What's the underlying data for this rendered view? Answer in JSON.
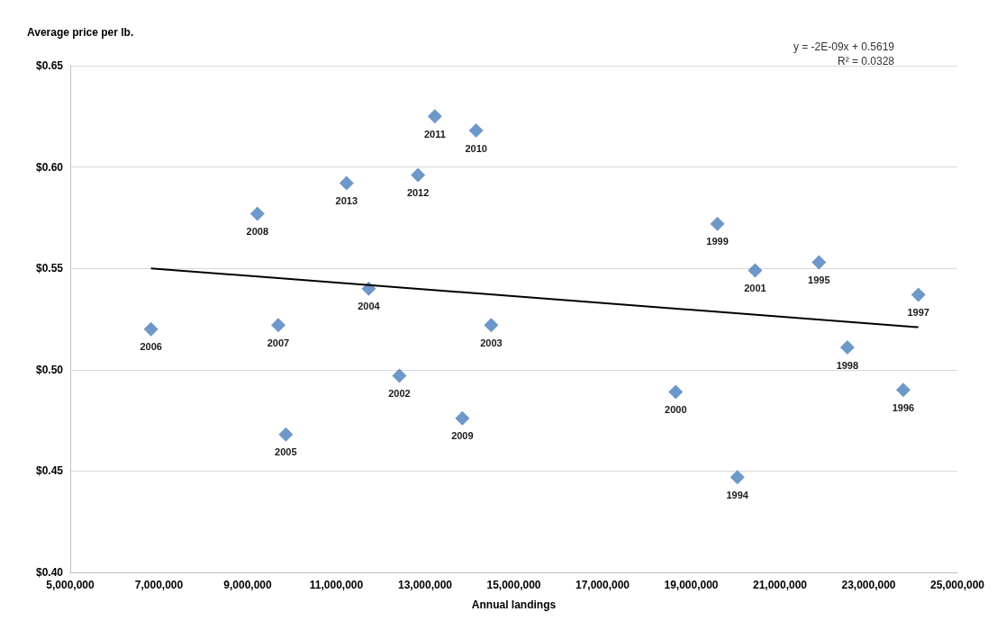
{
  "chart_data": {
    "type": "scatter",
    "xlabel": "Annual landings",
    "ylabel": "Average price per lb.",
    "annotations": [
      "y = -2E-09x + 0.5619",
      "R² = 0.0328",
      {
        "text": "2006",
        "x": 6820000,
        "y": 0.52
      },
      {
        "text": "2008",
        "x": 9220000,
        "y": 0.577
      },
      {
        "text": "2013",
        "x": 11230000,
        "y": 0.592
      },
      {
        "text": "2012",
        "x": 12840000,
        "y": 0.596
      },
      {
        "text": "2011",
        "x": 13220000,
        "y": 0.625
      },
      {
        "text": "2010",
        "x": 14150000,
        "y": 0.618
      },
      {
        "text": "2004",
        "x": 11730000,
        "y": 0.54
      },
      {
        "text": "2007",
        "x": 9690000,
        "y": 0.522
      },
      {
        "text": "2003",
        "x": 14490000,
        "y": 0.522
      },
      {
        "text": "2002",
        "x": 12420000,
        "y": 0.497
      },
      {
        "text": "2009",
        "x": 13840000,
        "y": 0.476
      },
      {
        "text": "2005",
        "x": 9860000,
        "y": 0.468
      },
      {
        "text": "1999",
        "x": 19590000,
        "y": 0.572
      },
      {
        "text": "2001",
        "x": 20440000,
        "y": 0.549
      },
      {
        "text": "1995",
        "x": 21880000,
        "y": 0.553
      },
      {
        "text": "1997",
        "x": 24120000,
        "y": 0.537
      },
      {
        "text": "1998",
        "x": 22520000,
        "y": 0.511
      },
      {
        "text": "2000",
        "x": 18650000,
        "y": 0.489
      },
      {
        "text": "1996",
        "x": 23780000,
        "y": 0.49
      },
      {
        "text": "1994",
        "x": 20040000,
        "y": 0.447
      }
    ],
    "xlim": [
      5000000,
      25000000
    ],
    "xticks": [
      {
        "value": 5000000,
        "label": "5,000,000"
      },
      {
        "value": 7000000,
        "label": "7,000,000"
      },
      {
        "value": 9000000,
        "label": "9,000,000"
      },
      {
        "value": 11000000,
        "label": "11,000,000"
      },
      {
        "value": 13000000,
        "label": "13,000,000"
      },
      {
        "value": 15000000,
        "label": "15,000,000"
      },
      {
        "value": 17000000,
        "label": "17,000,000"
      },
      {
        "value": 19000000,
        "label": "19,000,000"
      },
      {
        "value": 21000000,
        "label": "21,000,000"
      },
      {
        "value": 23000000,
        "label": "23,000,000"
      },
      {
        "value": 25000000,
        "label": "25,000,000"
      }
    ],
    "ylim": [
      0.4,
      0.65
    ],
    "yticks": [
      {
        "value": 0.4,
        "label": "$0.40"
      },
      {
        "value": 0.45,
        "label": "$0.45"
      },
      {
        "value": 0.5,
        "label": "$0.50"
      },
      {
        "value": 0.55,
        "label": "$0.55"
      },
      {
        "value": 0.6,
        "label": "$0.60"
      },
      {
        "value": 0.65,
        "label": "$0.65"
      }
    ],
    "grid": "y",
    "marker": "diamond",
    "series": [
      {
        "color": "#4a7ebb",
        "x": [
          6820000,
          9220000,
          11230000,
          12840000,
          13220000,
          14150000,
          11730000,
          9690000,
          14490000,
          12420000,
          13840000,
          9860000,
          19590000,
          20440000,
          21880000,
          24120000,
          22520000,
          18650000,
          23780000,
          20040000
        ],
        "values": [
          0.52,
          0.577,
          0.592,
          0.596,
          0.625,
          0.618,
          0.54,
          0.522,
          0.522,
          0.497,
          0.476,
          0.468,
          0.572,
          0.549,
          0.553,
          0.537,
          0.511,
          0.489,
          0.49,
          0.447
        ]
      },
      {
        "type": "line",
        "color": "#000000",
        "x": [
          6820000,
          24120000
        ],
        "values": [
          0.55,
          0.521
        ],
        "marker": "none",
        "line_style": "solid"
      }
    ]
  }
}
